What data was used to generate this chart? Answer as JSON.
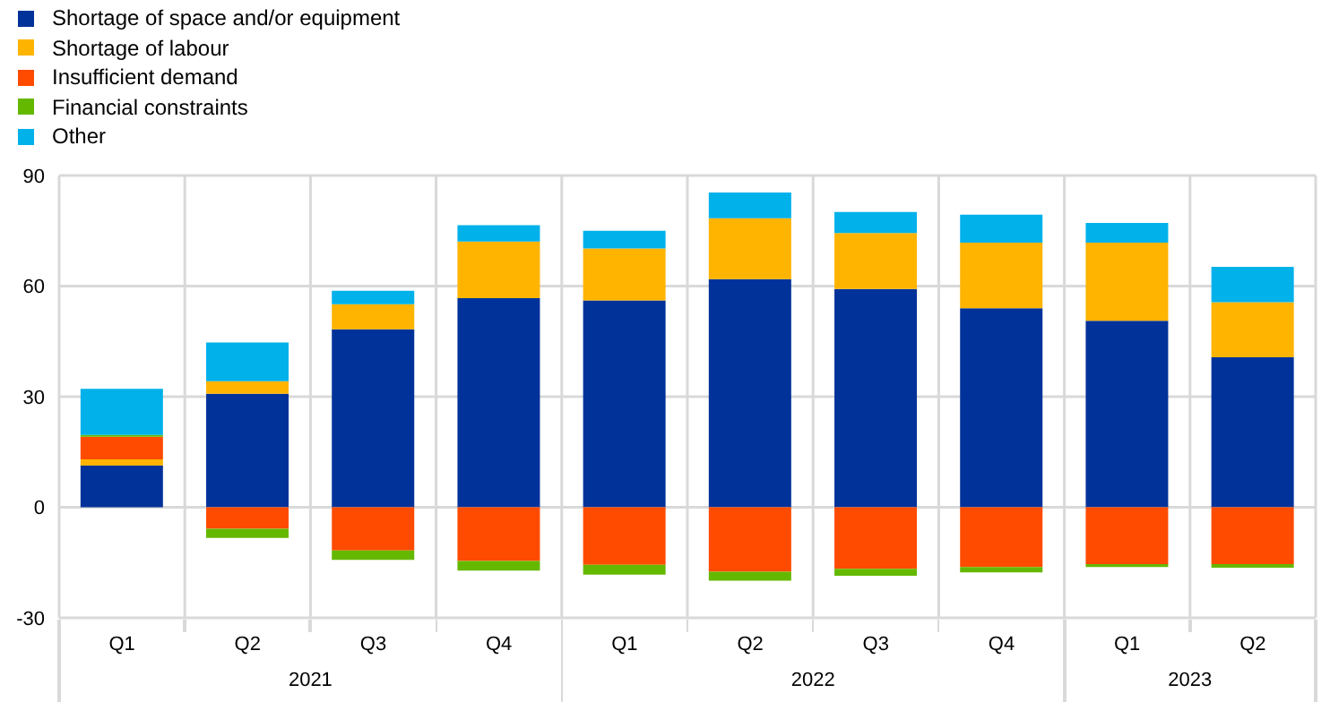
{
  "chart_data": {
    "type": "bar",
    "stacked": true,
    "categories": [
      "Q1",
      "Q2",
      "Q3",
      "Q4",
      "Q1",
      "Q2",
      "Q3",
      "Q4",
      "Q1",
      "Q2"
    ],
    "annotations": [
      "2021",
      "2022",
      "2023"
    ],
    "series": [
      {
        "name": "Shortage of space and/or equipment",
        "color": "#003299",
        "values": [
          11.3,
          30.8,
          48.3,
          56.7,
          56.1,
          61.9,
          59.2,
          54.0,
          50.6,
          40.7
        ]
      },
      {
        "name": "Shortage of labour",
        "color": "#ffb400",
        "values": [
          1.7,
          3.4,
          6.8,
          15.4,
          14.1,
          16.5,
          15.2,
          17.8,
          21.2,
          14.9
        ]
      },
      {
        "name": "Insufficient demand",
        "color": "#ff4b00",
        "values": [
          6.1,
          -5.8,
          -11.7,
          -14.6,
          -15.6,
          -17.5,
          -16.7,
          -16.2,
          -15.4,
          -15.4
        ]
      },
      {
        "name": "Financial constraints",
        "color": "#65b800",
        "values": [
          0.5,
          -2.5,
          -2.6,
          -2.6,
          -2.7,
          -2.4,
          -1.9,
          -1.5,
          -0.8,
          -1.0
        ]
      },
      {
        "name": "Other",
        "color": "#00b1ea",
        "values": [
          12.5,
          10.5,
          3.6,
          4.4,
          4.8,
          7.0,
          5.7,
          7.6,
          5.3,
          9.6
        ]
      }
    ],
    "ylim": [
      -30,
      90
    ],
    "yticks": [
      -30,
      0,
      30,
      60,
      90
    ],
    "grid": true,
    "legend": "top left"
  }
}
